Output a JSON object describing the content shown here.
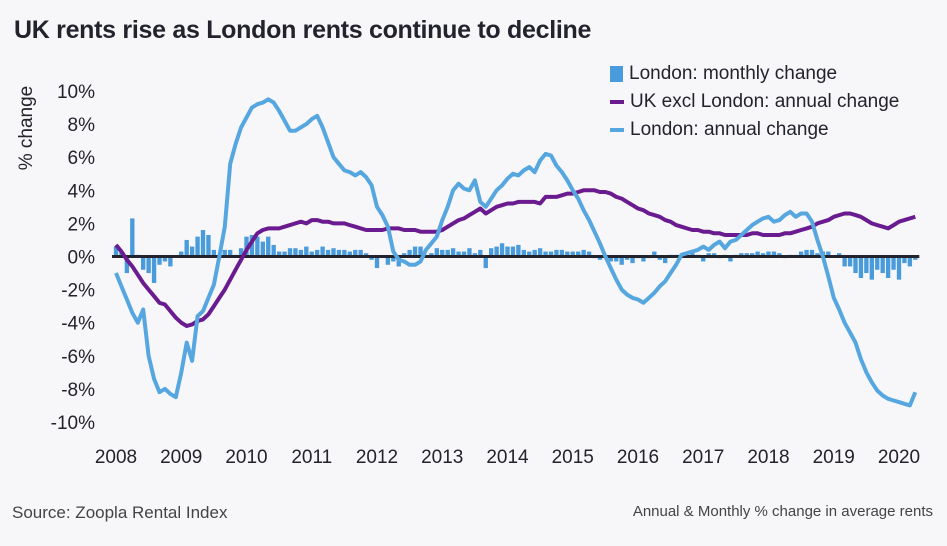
{
  "header": {
    "title": "UK rents rise as London rents continue to decline"
  },
  "footer": {
    "source": "Source: Zoopla Rental Index",
    "note": "Annual & Monthly % change in average rents"
  },
  "colors": {
    "london_monthly": "#4a9bdb",
    "uk_excl_london_annual": "#6a1b8f",
    "london_annual": "#56a6e0",
    "zero_line": "#23232d",
    "background": "#f7f7f9"
  },
  "chart_data": {
    "type": "bar+line",
    "title": "UK rents rise as London rents continue to decline",
    "xlabel": "",
    "ylabel": "% change",
    "ylim": [
      -10,
      10
    ],
    "yticks": [
      10,
      8,
      6,
      4,
      2,
      0,
      -2,
      -4,
      -6,
      -8,
      -10
    ],
    "ytick_labels": [
      "10%",
      "8%",
      "6%",
      "4%",
      "2%",
      "0%",
      "-2%",
      "-4%",
      "-6%",
      "-8%",
      "-10%"
    ],
    "xticks": [
      "2008",
      "2009",
      "2010",
      "2011",
      "2012",
      "2013",
      "2014",
      "2015",
      "2016",
      "2017",
      "2018",
      "2019",
      "2020"
    ],
    "x_start": "2008-01",
    "x_frequency": "monthly",
    "grid": false,
    "legend_position": "top-right",
    "legend": [
      {
        "name": "London: monthly change",
        "type": "bar"
      },
      {
        "name": "UK excl London: annual change",
        "type": "line"
      },
      {
        "name": "London: annual change",
        "type": "line"
      }
    ],
    "series": [
      {
        "name": "London: monthly change",
        "type": "bar",
        "values": [
          0.6,
          0.3,
          -1.0,
          2.3,
          0.1,
          -0.8,
          -1.0,
          -1.6,
          -0.5,
          -0.3,
          -0.6,
          0.0,
          0.3,
          1.0,
          0.6,
          1.2,
          1.6,
          1.3,
          0.4,
          0.1,
          0.4,
          0.4,
          0.1,
          0.5,
          1.2,
          1.3,
          1.2,
          0.9,
          1.2,
          0.7,
          0.3,
          0.3,
          0.5,
          0.5,
          0.4,
          0.6,
          0.3,
          0.4,
          0.6,
          0.4,
          0.5,
          0.4,
          0.4,
          0.3,
          0.4,
          0.4,
          0.2,
          -0.2,
          -0.7,
          0.0,
          -0.5,
          -0.3,
          -0.6,
          0.2,
          0.4,
          0.6,
          0.6,
          0.1,
          0.2,
          0.5,
          0.4,
          0.4,
          0.5,
          0.3,
          0.3,
          0.5,
          0.2,
          0.4,
          -0.7,
          0.5,
          0.6,
          0.8,
          0.6,
          0.6,
          0.7,
          0.4,
          0.3,
          0.4,
          0.5,
          0.3,
          0.3,
          0.4,
          0.4,
          0.3,
          0.3,
          0.3,
          0.4,
          0.3,
          -0.1,
          -0.2,
          -0.1,
          -0.3,
          -0.3,
          -0.5,
          -0.2,
          -0.4,
          -0.1,
          -0.3,
          -0.1,
          0.3,
          -0.2,
          -0.4,
          0.1,
          0.1,
          0.1,
          0.0,
          0.3,
          0.1,
          -0.3,
          0.2,
          0.2,
          -0.1,
          0.1,
          -0.3,
          0.1,
          0.2,
          0.2,
          0.2,
          0.3,
          0.2,
          0.3,
          0.3,
          0.2,
          -0.1,
          0.1,
          0.1,
          0.3,
          0.4,
          0.4,
          0.2,
          0.3,
          0.3,
          0.0,
          0.2,
          -0.6,
          -0.6,
          -1.0,
          -1.3,
          -1.0,
          -1.4,
          -0.8,
          -1.0,
          -1.3,
          -0.8,
          -1.4,
          -0.4,
          -0.6,
          -0.2
        ]
      },
      {
        "name": "UK excl London: annual change",
        "type": "line",
        "values": [
          0.7,
          0.3,
          -0.2,
          -0.6,
          -1.1,
          -1.6,
          -2.0,
          -2.4,
          -2.8,
          -2.9,
          -3.3,
          -3.7,
          -4.0,
          -4.2,
          -4.1,
          -3.9,
          -3.8,
          -3.5,
          -3.0,
          -2.5,
          -2.0,
          -1.4,
          -0.8,
          -0.2,
          0.4,
          0.9,
          1.4,
          1.6,
          1.7,
          1.7,
          1.7,
          1.8,
          1.9,
          2.0,
          2.1,
          2.0,
          2.2,
          2.2,
          2.1,
          2.1,
          2.0,
          2.0,
          2.0,
          1.9,
          1.8,
          1.7,
          1.6,
          1.6,
          1.6,
          1.6,
          1.7,
          1.7,
          1.7,
          1.6,
          1.6,
          1.6,
          1.5,
          1.5,
          1.5,
          1.5,
          1.6,
          1.8,
          2.0,
          2.2,
          2.3,
          2.5,
          2.7,
          2.9,
          2.6,
          2.8,
          3.0,
          3.1,
          3.2,
          3.2,
          3.3,
          3.3,
          3.3,
          3.3,
          3.2,
          3.6,
          3.6,
          3.6,
          3.7,
          3.8,
          3.8,
          3.9,
          4.0,
          4.0,
          4.0,
          3.9,
          3.9,
          3.8,
          3.6,
          3.5,
          3.3,
          3.1,
          2.9,
          2.8,
          2.6,
          2.5,
          2.4,
          2.2,
          2.1,
          1.9,
          1.8,
          1.7,
          1.6,
          1.6,
          1.5,
          1.5,
          1.4,
          1.4,
          1.3,
          1.3,
          1.3,
          1.3,
          1.3,
          1.4,
          1.4,
          1.3,
          1.3,
          1.3,
          1.3,
          1.4,
          1.4,
          1.5,
          1.6,
          1.7,
          1.8,
          2.0,
          2.1,
          2.2,
          2.4,
          2.5,
          2.6,
          2.6,
          2.5,
          2.4,
          2.2,
          2.0,
          1.9,
          1.8,
          1.7,
          1.9,
          2.1,
          2.2,
          2.3,
          2.4
        ]
      },
      {
        "name": "London: annual change",
        "type": "line",
        "values": [
          -1.0,
          -1.8,
          -2.6,
          -3.4,
          -4.0,
          -3.2,
          -6.0,
          -7.4,
          -8.2,
          -8.0,
          -8.3,
          -8.5,
          -7.0,
          -5.2,
          -6.3,
          -3.6,
          -3.3,
          -2.5,
          -1.7,
          0.0,
          1.8,
          5.6,
          6.8,
          7.8,
          8.4,
          9.0,
          9.2,
          9.3,
          9.5,
          9.3,
          8.8,
          8.2,
          7.6,
          7.6,
          7.8,
          8.0,
          8.3,
          8.5,
          7.8,
          6.9,
          6.0,
          5.6,
          5.2,
          5.1,
          4.9,
          5.1,
          4.8,
          4.3,
          3.0,
          2.5,
          1.8,
          0.3,
          -0.2,
          -0.3,
          -0.5,
          -0.5,
          -0.3,
          0.4,
          0.8,
          1.2,
          2.2,
          3.0,
          4.0,
          4.4,
          4.1,
          4.0,
          4.6,
          3.3,
          3.0,
          3.5,
          4.0,
          4.3,
          4.7,
          5.0,
          4.9,
          5.2,
          5.4,
          5.1,
          5.8,
          6.2,
          6.1,
          5.5,
          5.1,
          4.6,
          4.0,
          3.5,
          2.8,
          2.2,
          1.5,
          0.8,
          0.0,
          -0.7,
          -1.4,
          -2.0,
          -2.3,
          -2.5,
          -2.6,
          -2.8,
          -2.5,
          -2.2,
          -1.8,
          -1.5,
          -1.0,
          -0.5,
          0.1,
          0.2,
          0.3,
          0.4,
          0.6,
          0.4,
          0.7,
          0.9,
          0.5,
          0.9,
          1.0,
          1.3,
          1.6,
          1.9,
          2.1,
          2.3,
          2.4,
          2.1,
          2.2,
          2.5,
          2.7,
          2.4,
          2.6,
          2.6,
          2.1,
          1.0,
          0.0,
          -1.2,
          -2.5,
          -3.2,
          -4.0,
          -4.6,
          -5.2,
          -6.2,
          -7.0,
          -7.6,
          -8.1,
          -8.4,
          -8.6,
          -8.7,
          -8.8,
          -8.9,
          -9.0,
          -8.2
        ]
      }
    ]
  }
}
